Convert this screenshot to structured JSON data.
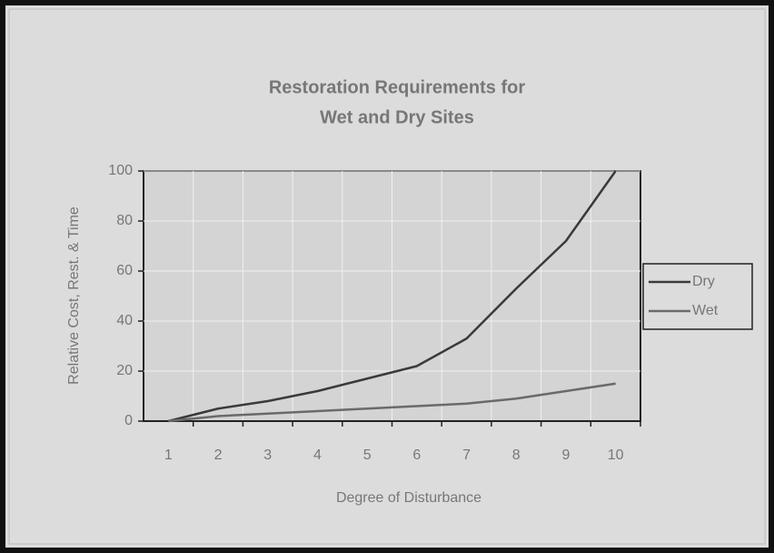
{
  "chart_data": {
    "type": "line",
    "title": [
      "Restoration Requirements for",
      "Wet and Dry Sites"
    ],
    "x_label": "Degree of Disturbance",
    "y_label": "Relative Cost, Rest. & Time",
    "categories": [
      "1",
      "2",
      "3",
      "4",
      "5",
      "6",
      "7",
      "8",
      "9",
      "10"
    ],
    "series": [
      {
        "name": "Dry",
        "color": "#3a3a3a",
        "values": [
          0,
          5,
          8,
          12,
          17,
          22,
          33,
          53,
          72,
          100
        ]
      },
      {
        "name": "Wet",
        "color": "#6a6a6a",
        "values": [
          0,
          2,
          3,
          4,
          5,
          6,
          7,
          9,
          12,
          15
        ]
      }
    ],
    "ylim": [
      0,
      100
    ],
    "yticks": [
      0,
      20,
      40,
      60,
      80,
      100
    ],
    "grid": true,
    "legend": "right"
  }
}
